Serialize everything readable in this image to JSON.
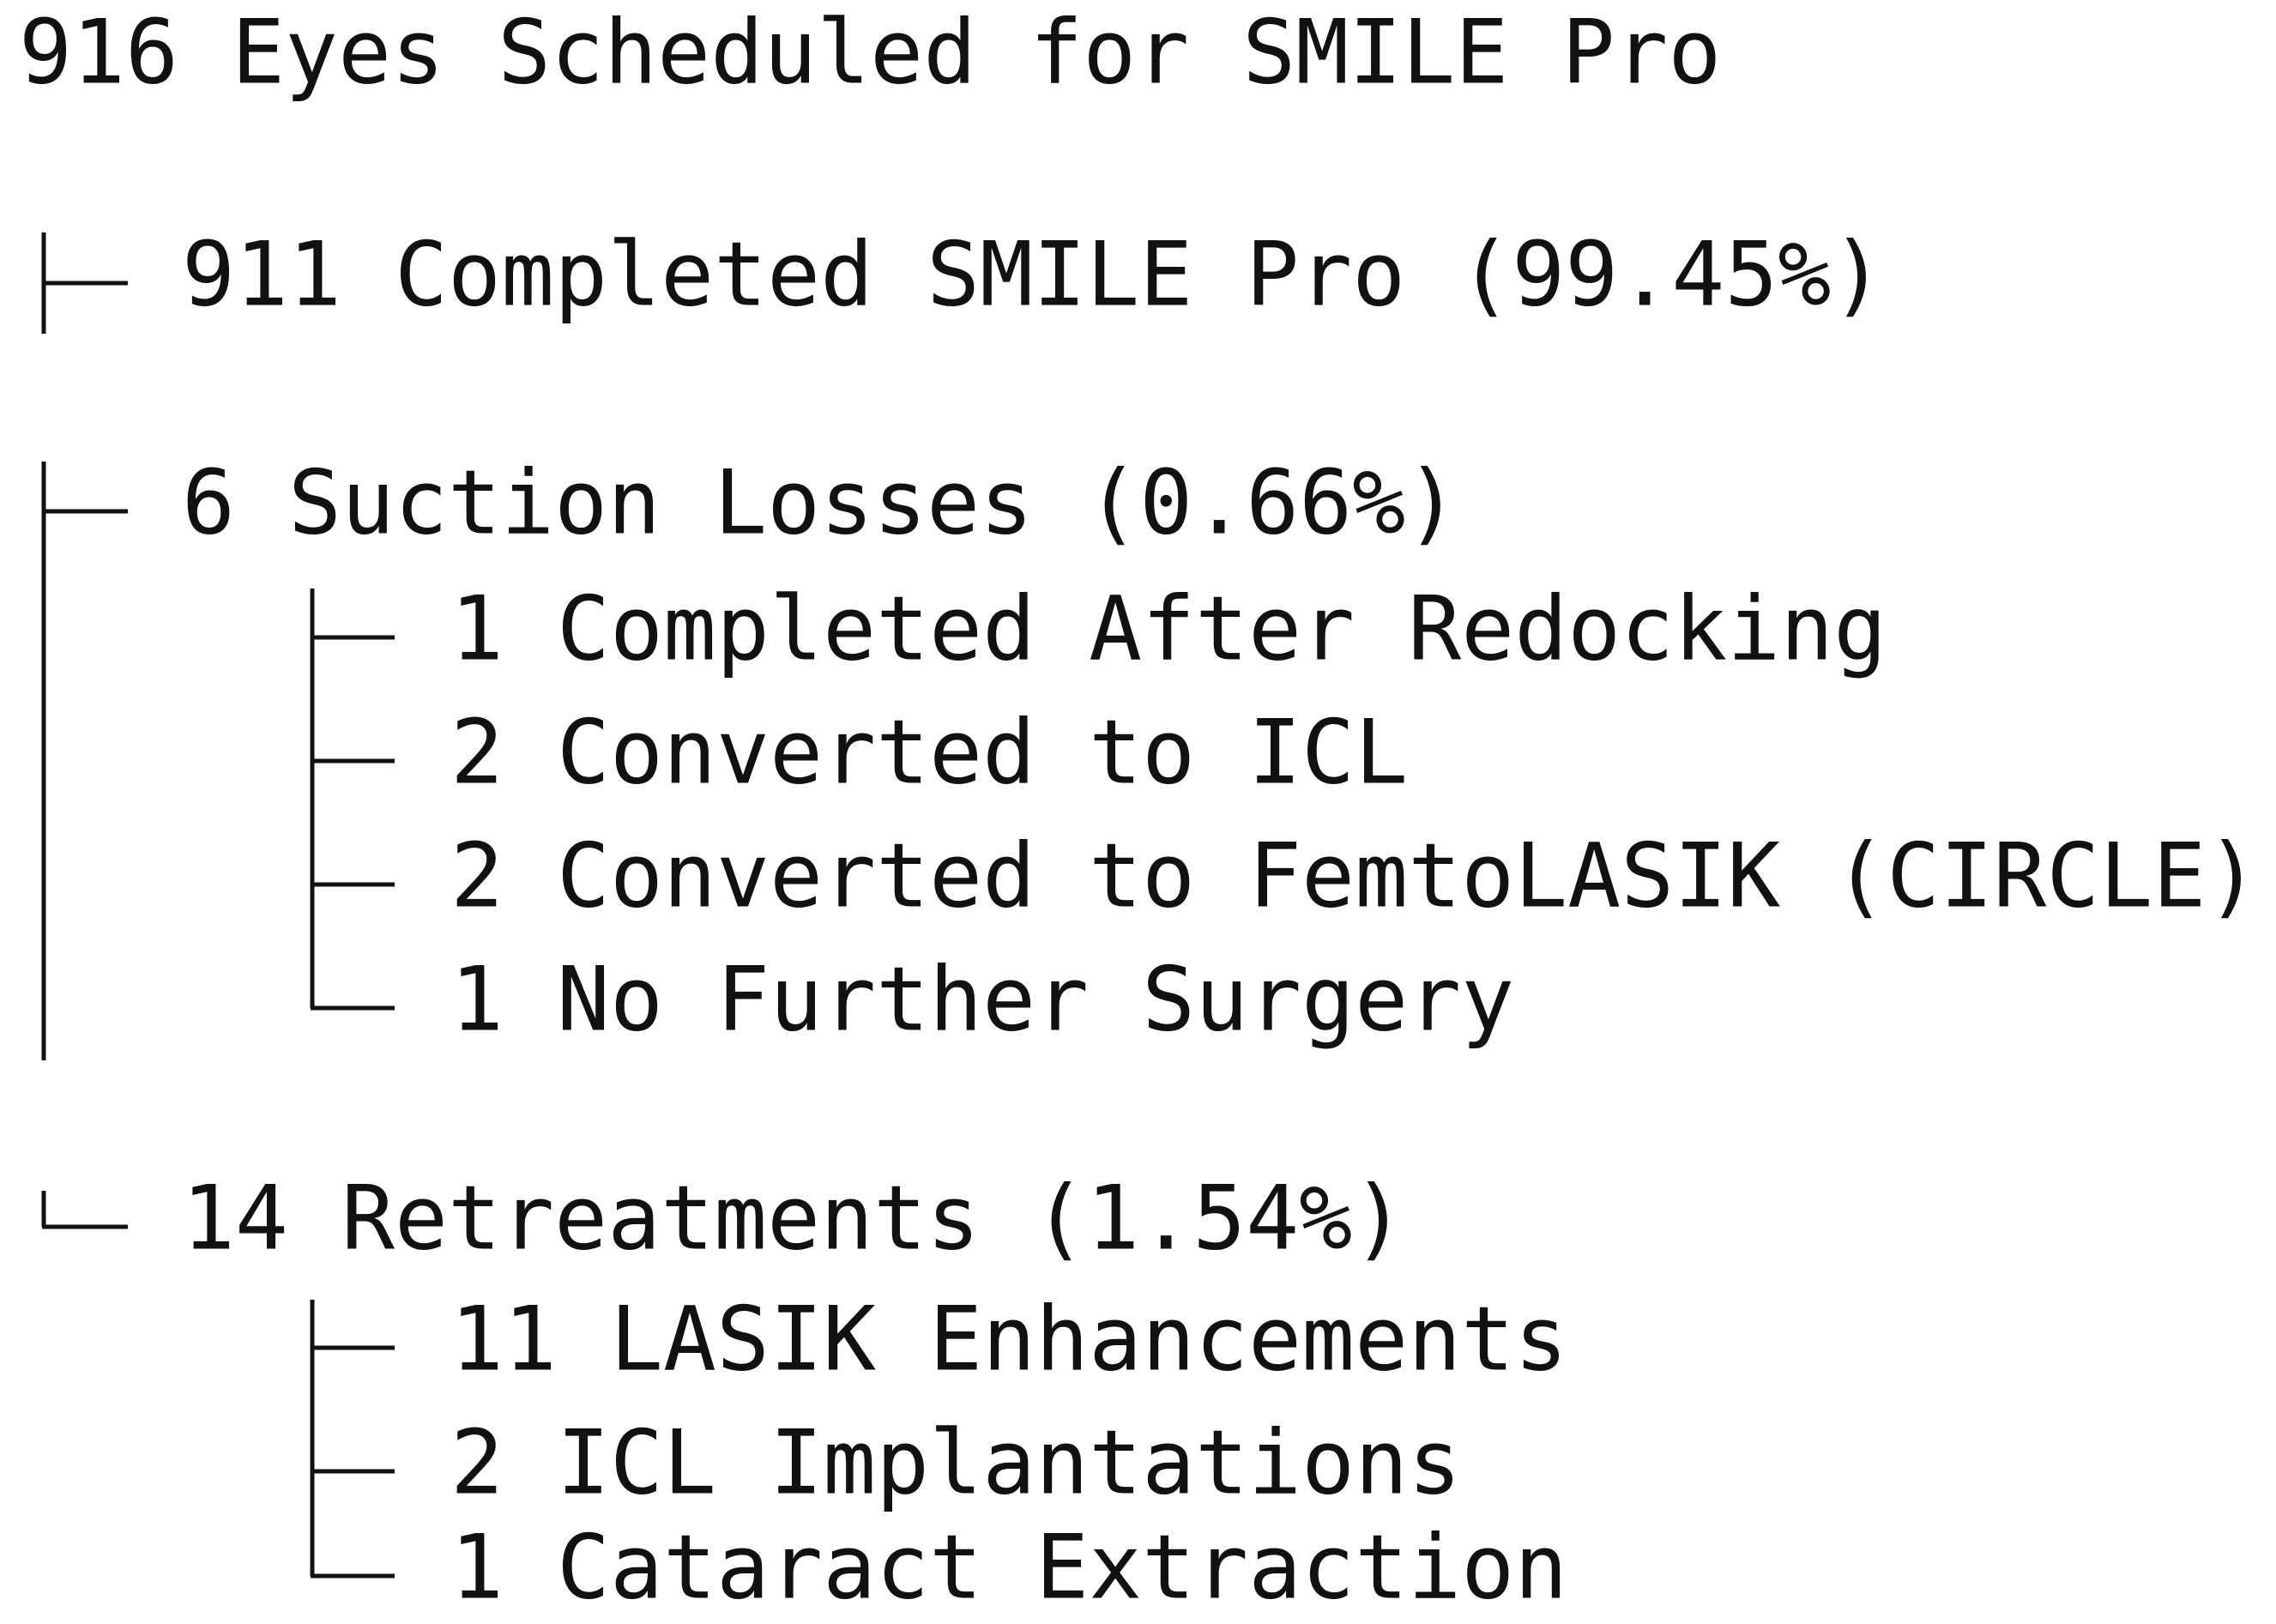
{
  "title": "916 Eyes Scheduled for SMILE Pro",
  "branches": [
    {
      "label": "911 Completed SMILE Pro (99.45%)",
      "children": []
    },
    {
      "label": "6 Suction Losses (0.66%)",
      "children": [
        {
          "label": "1 Completed After Redocking"
        },
        {
          "label": "2 Converted to ICL"
        },
        {
          "label": "2 Converted to FemtoLASIK (CIRCLE)"
        },
        {
          "label": "1 No Further Surgery"
        }
      ]
    },
    {
      "label": "14 Retreatments (1.54%)",
      "children": [
        {
          "label": "11 LASIK Enhancements"
        },
        {
          "label": "2 ICL Implantations"
        },
        {
          "label": "1 Cataract Extraction"
        }
      ]
    }
  ]
}
